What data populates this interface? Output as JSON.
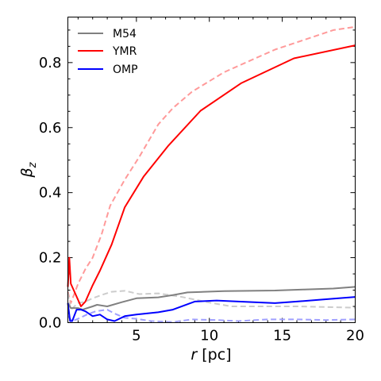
{
  "chart_data": {
    "type": "line",
    "xlabel": "r [pc]",
    "ylabel": "β_z",
    "xlim": [
      0.3,
      20
    ],
    "ylim": [
      0,
      0.94
    ],
    "x_ticks": [
      5,
      10,
      15,
      20
    ],
    "y_ticks": [
      0.0,
      0.2,
      0.4,
      0.6,
      0.8
    ],
    "x_tick_labels": [
      "5",
      "10",
      "15",
      "20"
    ],
    "y_tick_labels": [
      "0.0",
      "0.2",
      "0.4",
      "0.6",
      "0.8"
    ],
    "legend_position": "upper-left",
    "legend": [
      "M54",
      "YMR",
      "OMP"
    ],
    "series": [
      {
        "name": "M54",
        "color": "#808080",
        "style": "solid",
        "points": [
          [
            0.3,
            0.06
          ],
          [
            0.5,
            0.045
          ],
          [
            1.0,
            0.045
          ],
          [
            1.3,
            0.04
          ],
          [
            2.0,
            0.05
          ],
          [
            2.3,
            0.055
          ],
          [
            3.0,
            0.05
          ],
          [
            4.0,
            0.063
          ],
          [
            5.0,
            0.075
          ],
          [
            6.5,
            0.078
          ],
          [
            7.5,
            0.085
          ],
          [
            8.5,
            0.093
          ],
          [
            11,
            0.097
          ],
          [
            14.5,
            0.099
          ],
          [
            16.5,
            0.102
          ],
          [
            18.5,
            0.105
          ],
          [
            20,
            0.11
          ]
        ]
      },
      {
        "name": "YMR",
        "color": "#ff0000",
        "style": "solid",
        "points": [
          [
            0.3,
            0.11
          ],
          [
            0.4,
            0.2
          ],
          [
            0.5,
            0.12
          ],
          [
            0.8,
            0.09
          ],
          [
            1.2,
            0.05
          ],
          [
            1.5,
            0.065
          ],
          [
            2.0,
            0.115
          ],
          [
            2.5,
            0.16
          ],
          [
            3.3,
            0.24
          ],
          [
            4.2,
            0.355
          ],
          [
            5.5,
            0.45
          ],
          [
            7.2,
            0.545
          ],
          [
            9.4,
            0.652
          ],
          [
            12.2,
            0.737
          ],
          [
            15.8,
            0.813
          ],
          [
            20,
            0.853
          ]
        ]
      },
      {
        "name": "OMP",
        "color": "#0000ff",
        "style": "solid",
        "points": [
          [
            0.3,
            0.06
          ],
          [
            0.45,
            0.005
          ],
          [
            0.6,
            0.005
          ],
          [
            0.9,
            0.04
          ],
          [
            1.2,
            0.04
          ],
          [
            1.5,
            0.035
          ],
          [
            2.0,
            0.02
          ],
          [
            2.5,
            0.025
          ],
          [
            3.0,
            0.01
          ],
          [
            3.5,
            0.005
          ],
          [
            4.2,
            0.02
          ],
          [
            5.0,
            0.025
          ],
          [
            6.5,
            0.032
          ],
          [
            7.5,
            0.04
          ],
          [
            9.0,
            0.065
          ],
          [
            10.5,
            0.068
          ],
          [
            12,
            0.065
          ],
          [
            14.5,
            0.06
          ],
          [
            16,
            0.065
          ],
          [
            18,
            0.072
          ],
          [
            20,
            0.079
          ]
        ]
      },
      {
        "name": "",
        "color": "#ff9a9a",
        "style": "dashed",
        "points": [
          [
            0.3,
            0.095
          ],
          [
            0.5,
            0.06
          ],
          [
            1.0,
            0.12
          ],
          [
            1.5,
            0.165
          ],
          [
            2.0,
            0.2
          ],
          [
            2.6,
            0.27
          ],
          [
            3.2,
            0.36
          ],
          [
            4.2,
            0.44
          ],
          [
            5.2,
            0.51
          ],
          [
            6.5,
            0.61
          ],
          [
            7.5,
            0.66
          ],
          [
            8.8,
            0.71
          ],
          [
            11,
            0.77
          ],
          [
            12.5,
            0.8
          ],
          [
            14.5,
            0.84
          ],
          [
            16.5,
            0.87
          ],
          [
            18.5,
            0.9
          ],
          [
            20,
            0.91
          ]
        ]
      },
      {
        "name": "",
        "color": "#cccccc",
        "style": "dashed",
        "points": [
          [
            0.3,
            0.09
          ],
          [
            0.5,
            0.04
          ],
          [
            1.0,
            0.06
          ],
          [
            1.5,
            0.065
          ],
          [
            2.0,
            0.075
          ],
          [
            2.6,
            0.085
          ],
          [
            3.3,
            0.095
          ],
          [
            4.2,
            0.098
          ],
          [
            5.2,
            0.088
          ],
          [
            6.5,
            0.09
          ],
          [
            8.0,
            0.08
          ],
          [
            10.0,
            0.062
          ],
          [
            11.5,
            0.05
          ],
          [
            14,
            0.05
          ],
          [
            16,
            0.05
          ],
          [
            18,
            0.048
          ],
          [
            20,
            0.046
          ]
        ]
      },
      {
        "name": "",
        "color": "#a0a0ff",
        "style": "dashed",
        "points": [
          [
            0.3,
            0.02
          ],
          [
            0.6,
            0.005
          ],
          [
            1.0,
            0.012
          ],
          [
            1.6,
            0.025
          ],
          [
            2.2,
            0.035
          ],
          [
            3.0,
            0.04
          ],
          [
            3.5,
            0.028
          ],
          [
            4.2,
            0.015
          ],
          [
            5.0,
            0.012
          ],
          [
            6.0,
            0.005
          ],
          [
            7.5,
            0.002
          ],
          [
            8.8,
            0.01
          ],
          [
            10.5,
            0.008
          ],
          [
            12,
            0.005
          ],
          [
            14,
            0.01
          ],
          [
            16,
            0.01
          ],
          [
            18,
            0.008
          ],
          [
            20,
            0.01
          ]
        ]
      }
    ]
  }
}
